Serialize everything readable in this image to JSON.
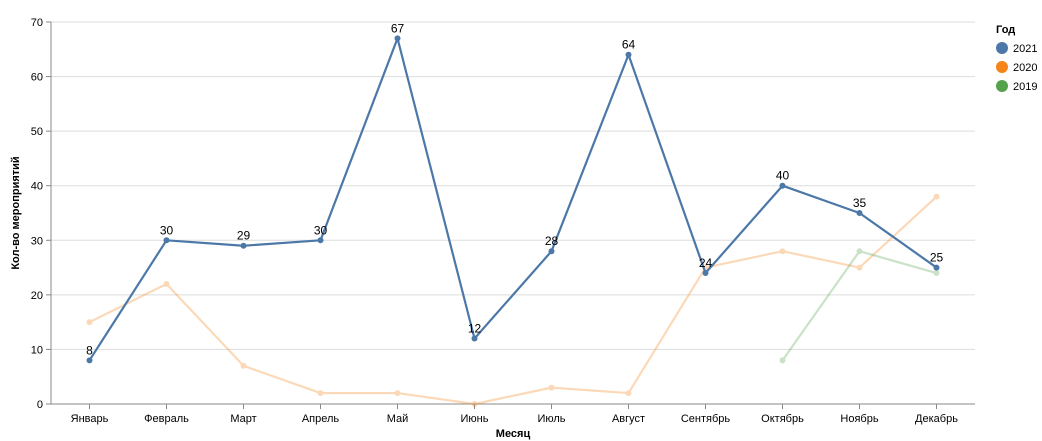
{
  "chart_data": {
    "type": "line",
    "xlabel": "Месяц",
    "ylabel": "Кол-во мероприятий",
    "ylim": [
      0,
      70
    ],
    "yticks": [
      0,
      10,
      20,
      30,
      40,
      50,
      60,
      70
    ],
    "grid": true,
    "legend_title": "Год",
    "legend_position": "top-right",
    "categories": [
      "Январь",
      "Февраль",
      "Март",
      "Апрель",
      "Май",
      "Июнь",
      "Июль",
      "Август",
      "Сентябрь",
      "Октябрь",
      "Ноябрь",
      "Декабрь"
    ],
    "series": [
      {
        "name": "2021",
        "color": "#4c78a8",
        "values": [
          8,
          30,
          29,
          30,
          67,
          12,
          28,
          64,
          24,
          40,
          35,
          25
        ],
        "highlighted": true,
        "data_labels": true
      },
      {
        "name": "2020",
        "color": "#f58518",
        "values": [
          15,
          22,
          7,
          2,
          2,
          0,
          3,
          2,
          25,
          28,
          25,
          38
        ],
        "highlighted": false,
        "data_labels": false
      },
      {
        "name": "2019",
        "color": "#54a24b",
        "values": [
          null,
          null,
          null,
          null,
          null,
          null,
          null,
          null,
          null,
          8,
          28,
          24
        ],
        "highlighted": false,
        "data_labels": false
      }
    ]
  }
}
